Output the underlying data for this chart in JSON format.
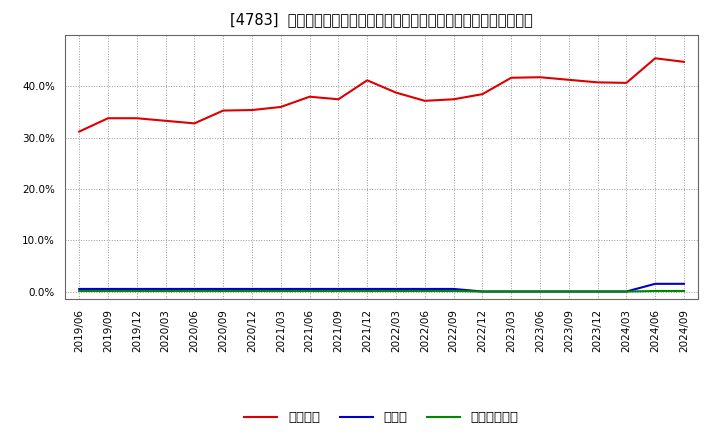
{
  "title": "[4783]  自己資本、のれん、繰延税金資産の総資産に対する比率の推移",
  "x_labels": [
    "2019/06",
    "2019/09",
    "2019/12",
    "2020/03",
    "2020/06",
    "2020/09",
    "2020/12",
    "2021/03",
    "2021/06",
    "2021/09",
    "2021/12",
    "2022/03",
    "2022/06",
    "2022/09",
    "2022/12",
    "2023/03",
    "2023/06",
    "2023/09",
    "2023/12",
    "2024/03",
    "2024/06",
    "2024/09"
  ],
  "equity": [
    31.2,
    33.8,
    33.8,
    33.3,
    32.8,
    35.3,
    35.4,
    36.0,
    38.0,
    37.5,
    41.2,
    38.8,
    37.2,
    37.5,
    38.5,
    41.7,
    41.8,
    41.3,
    40.8,
    40.7,
    45.5,
    44.8
  ],
  "noren": [
    0.5,
    0.5,
    0.5,
    0.5,
    0.5,
    0.5,
    0.5,
    0.5,
    0.5,
    0.5,
    0.5,
    0.5,
    0.5,
    0.5,
    0.0,
    0.0,
    0.0,
    0.0,
    0.0,
    0.0,
    1.5,
    1.5
  ],
  "deferred_tax": [
    0.1,
    0.1,
    0.1,
    0.1,
    0.1,
    0.1,
    0.1,
    0.1,
    0.1,
    0.1,
    0.1,
    0.1,
    0.1,
    0.1,
    0.0,
    0.0,
    0.0,
    0.0,
    0.0,
    0.0,
    0.1,
    0.1
  ],
  "equity_color": "#dd0000",
  "noren_color": "#0000cc",
  "deferred_color": "#008800",
  "bg_color": "#ffffff",
  "plot_bg_color": "#ffffff",
  "grid_color": "#999999",
  "ylim": [
    -1.5,
    50
  ],
  "yticks": [
    0,
    10,
    20,
    30,
    40
  ],
  "legend_labels": [
    "自己資本",
    "のれん",
    "繰延税金資産"
  ],
  "title_fontsize": 10.5,
  "tick_fontsize": 7.5,
  "legend_fontsize": 9.5,
  "linewidth": 1.5
}
